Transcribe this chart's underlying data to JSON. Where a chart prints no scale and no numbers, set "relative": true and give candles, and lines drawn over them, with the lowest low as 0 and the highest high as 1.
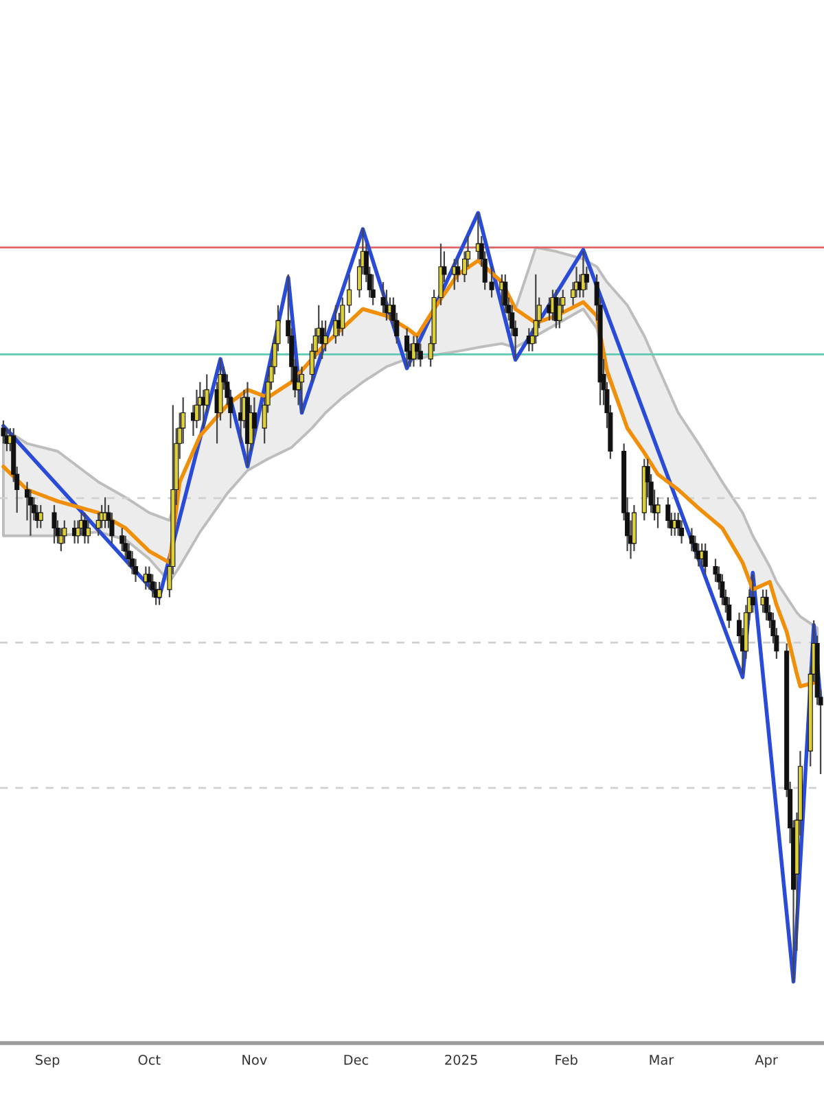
{
  "chart_data": {
    "type": "candlestick",
    "relative": true,
    "tick_labels": "x",
    "grid": false,
    "xlim": [
      "2024-08-18",
      "2025-04-18"
    ],
    "xticks": [
      {
        "value": "2024-09-01",
        "label": "Sep"
      },
      {
        "value": "2024-10-01",
        "label": "Oct"
      },
      {
        "value": "2024-11-01",
        "label": "Nov"
      },
      {
        "value": "2024-12-01",
        "label": "Dec"
      },
      {
        "value": "2025-01-01",
        "label": "2025"
      },
      {
        "value": "2025-02-01",
        "label": "Feb"
      },
      {
        "value": "2025-03-01",
        "label": "Mar"
      },
      {
        "value": "2025-04-01",
        "label": "Apr"
      }
    ],
    "x": [
      "2024-08-19",
      "2024-08-20",
      "2024-08-21",
      "2024-08-22",
      "2024-08-23",
      "2024-08-26",
      "2024-08-27",
      "2024-08-28",
      "2024-08-29",
      "2024-08-30",
      "2024-09-03",
      "2024-09-04",
      "2024-09-05",
      "2024-09-06",
      "2024-09-09",
      "2024-09-10",
      "2024-09-11",
      "2024-09-12",
      "2024-09-13",
      "2024-09-16",
      "2024-09-17",
      "2024-09-18",
      "2024-09-19",
      "2024-09-20",
      "2024-09-23",
      "2024-09-24",
      "2024-09-25",
      "2024-09-26",
      "2024-09-27",
      "2024-09-30",
      "2024-10-01",
      "2024-10-02",
      "2024-10-03",
      "2024-10-04",
      "2024-10-07",
      "2024-10-08",
      "2024-10-09",
      "2024-10-10",
      "2024-10-11",
      "2024-10-14",
      "2024-10-15",
      "2024-10-16",
      "2024-10-17",
      "2024-10-18",
      "2024-10-21",
      "2024-10-22",
      "2024-10-23",
      "2024-10-24",
      "2024-10-25",
      "2024-10-28",
      "2024-10-29",
      "2024-10-30",
      "2024-10-31",
      "2024-11-01",
      "2024-11-04",
      "2024-11-05",
      "2024-11-06",
      "2024-11-07",
      "2024-11-08",
      "2024-11-11",
      "2024-11-12",
      "2024-11-13",
      "2024-11-14",
      "2024-11-15",
      "2024-11-18",
      "2024-11-19",
      "2024-11-20",
      "2024-11-21",
      "2024-11-22",
      "2024-11-25",
      "2024-11-26",
      "2024-11-27",
      "2024-11-29",
      "2024-12-02",
      "2024-12-03",
      "2024-12-04",
      "2024-12-05",
      "2024-12-06",
      "2024-12-09",
      "2024-12-10",
      "2024-12-11",
      "2024-12-12",
      "2024-12-13",
      "2024-12-16",
      "2024-12-17",
      "2024-12-18",
      "2024-12-19",
      "2024-12-20",
      "2024-12-23",
      "2024-12-24",
      "2024-12-26",
      "2024-12-27",
      "2024-12-30",
      "2024-12-31",
      "2025-01-02",
      "2025-01-03",
      "2025-01-06",
      "2025-01-07",
      "2025-01-08",
      "2025-01-10",
      "2025-01-13",
      "2025-01-14",
      "2025-01-15",
      "2025-01-16",
      "2025-01-17",
      "2025-01-21",
      "2025-01-22",
      "2025-01-23",
      "2025-01-24",
      "2025-01-27",
      "2025-01-28",
      "2025-01-29",
      "2025-01-30",
      "2025-01-31",
      "2025-02-03",
      "2025-02-04",
      "2025-02-05",
      "2025-02-06",
      "2025-02-07",
      "2025-02-10",
      "2025-02-11",
      "2025-02-12",
      "2025-02-13",
      "2025-02-14",
      "2025-02-18",
      "2025-02-19",
      "2025-02-20",
      "2025-02-21",
      "2025-02-24",
      "2025-02-25",
      "2025-02-26",
      "2025-02-27",
      "2025-02-28",
      "2025-03-03",
      "2025-03-04",
      "2025-03-05",
      "2025-03-06",
      "2025-03-07",
      "2025-03-10",
      "2025-03-11",
      "2025-03-12",
      "2025-03-13",
      "2025-03-14",
      "2025-03-17",
      "2025-03-18",
      "2025-03-19",
      "2025-03-20",
      "2025-03-21",
      "2025-03-24",
      "2025-03-25",
      "2025-03-26",
      "2025-03-27",
      "2025-03-28",
      "2025-03-31",
      "2025-04-01",
      "2025-04-02",
      "2025-04-03",
      "2025-04-04",
      "2025-04-07",
      "2025-04-08",
      "2025-04-09",
      "2025-04-10",
      "2025-04-11",
      "2025-04-14",
      "2025-04-15",
      "2025-04-16",
      "2025-04-17"
    ],
    "ohlc": [
      [
        0.72,
        0.73,
        0.7,
        0.71
      ],
      [
        0.71,
        0.72,
        0.69,
        0.7
      ],
      [
        0.7,
        0.72,
        0.69,
        0.71
      ],
      [
        0.71,
        0.72,
        0.65,
        0.66
      ],
      [
        0.66,
        0.67,
        0.61,
        0.64
      ],
      [
        0.64,
        0.65,
        0.6,
        0.63
      ],
      [
        0.63,
        0.64,
        0.58,
        0.62
      ],
      [
        0.62,
        0.63,
        0.6,
        0.61
      ],
      [
        0.61,
        0.62,
        0.59,
        0.6
      ],
      [
        0.6,
        0.62,
        0.59,
        0.61
      ],
      [
        0.61,
        0.62,
        0.57,
        0.59
      ],
      [
        0.59,
        0.6,
        0.57,
        0.58
      ],
      [
        0.57,
        0.59,
        0.56,
        0.58
      ],
      [
        0.58,
        0.6,
        0.57,
        0.59
      ],
      [
        0.59,
        0.6,
        0.57,
        0.58
      ],
      [
        0.58,
        0.6,
        0.57,
        0.59
      ],
      [
        0.59,
        0.61,
        0.58,
        0.6
      ],
      [
        0.6,
        0.61,
        0.57,
        0.58
      ],
      [
        0.58,
        0.6,
        0.57,
        0.59
      ],
      [
        0.59,
        0.61,
        0.58,
        0.6
      ],
      [
        0.6,
        0.62,
        0.59,
        0.61
      ],
      [
        0.6,
        0.63,
        0.59,
        0.61
      ],
      [
        0.61,
        0.62,
        0.59,
        0.6
      ],
      [
        0.6,
        0.61,
        0.57,
        0.58
      ],
      [
        0.58,
        0.59,
        0.56,
        0.57
      ],
      [
        0.57,
        0.58,
        0.55,
        0.56
      ],
      [
        0.56,
        0.57,
        0.54,
        0.55
      ],
      [
        0.55,
        0.56,
        0.53,
        0.54
      ],
      [
        0.54,
        0.55,
        0.52,
        0.53
      ],
      [
        0.52,
        0.54,
        0.51,
        0.53
      ],
      [
        0.53,
        0.54,
        0.51,
        0.52
      ],
      [
        0.52,
        0.53,
        0.5,
        0.51
      ],
      [
        0.51,
        0.52,
        0.49,
        0.5
      ],
      [
        0.5,
        0.52,
        0.49,
        0.51
      ],
      [
        0.51,
        0.55,
        0.5,
        0.54
      ],
      [
        0.54,
        0.75,
        0.53,
        0.64
      ],
      [
        0.64,
        0.72,
        0.62,
        0.7
      ],
      [
        0.7,
        0.74,
        0.68,
        0.72
      ],
      [
        0.72,
        0.76,
        0.7,
        0.74
      ],
      [
        0.74,
        0.75,
        0.71,
        0.73
      ],
      [
        0.73,
        0.77,
        0.72,
        0.75
      ],
      [
        0.75,
        0.78,
        0.73,
        0.76
      ],
      [
        0.76,
        0.77,
        0.72,
        0.75
      ],
      [
        0.75,
        0.79,
        0.74,
        0.77
      ],
      [
        0.77,
        0.78,
        0.7,
        0.74
      ],
      [
        0.74,
        0.81,
        0.73,
        0.79
      ],
      [
        0.79,
        0.8,
        0.77,
        0.78
      ],
      [
        0.78,
        0.79,
        0.75,
        0.76
      ],
      [
        0.76,
        0.77,
        0.72,
        0.74
      ],
      [
        0.74,
        0.76,
        0.7,
        0.73
      ],
      [
        0.73,
        0.77,
        0.72,
        0.76
      ],
      [
        0.76,
        0.78,
        0.67,
        0.7
      ],
      [
        0.7,
        0.75,
        0.69,
        0.74
      ],
      [
        0.74,
        0.76,
        0.71,
        0.72
      ],
      [
        0.72,
        0.76,
        0.7,
        0.75
      ],
      [
        0.75,
        0.79,
        0.74,
        0.78
      ],
      [
        0.78,
        0.81,
        0.77,
        0.8
      ],
      [
        0.8,
        0.84,
        0.79,
        0.83
      ],
      [
        0.83,
        0.88,
        0.82,
        0.86
      ],
      [
        0.86,
        0.92,
        0.83,
        0.84
      ],
      [
        0.84,
        0.85,
        0.78,
        0.8
      ],
      [
        0.8,
        0.81,
        0.76,
        0.77
      ],
      [
        0.77,
        0.79,
        0.75,
        0.78
      ],
      [
        0.78,
        0.8,
        0.74,
        0.79
      ],
      [
        0.79,
        0.83,
        0.78,
        0.82
      ],
      [
        0.82,
        0.85,
        0.81,
        0.84
      ],
      [
        0.84,
        0.88,
        0.83,
        0.85
      ],
      [
        0.85,
        0.86,
        0.81,
        0.83
      ],
      [
        0.83,
        0.86,
        0.82,
        0.84
      ],
      [
        0.84,
        0.88,
        0.83,
        0.86
      ],
      [
        0.86,
        0.87,
        0.84,
        0.85
      ],
      [
        0.85,
        0.89,
        0.84,
        0.88
      ],
      [
        0.88,
        0.92,
        0.87,
        0.9
      ],
      [
        0.9,
        0.94,
        0.89,
        0.93
      ],
      [
        0.93,
        0.98,
        0.92,
        0.95
      ],
      [
        0.95,
        0.96,
        0.91,
        0.92
      ],
      [
        0.92,
        0.93,
        0.89,
        0.9
      ],
      [
        0.9,
        0.92,
        0.88,
        0.89
      ],
      [
        0.89,
        0.91,
        0.87,
        0.88
      ],
      [
        0.88,
        0.9,
        0.86,
        0.87
      ],
      [
        0.87,
        0.89,
        0.86,
        0.88
      ],
      [
        0.88,
        0.89,
        0.85,
        0.86
      ],
      [
        0.86,
        0.87,
        0.83,
        0.84
      ],
      [
        0.84,
        0.85,
        0.8,
        0.82
      ],
      [
        0.82,
        0.83,
        0.8,
        0.81
      ],
      [
        0.81,
        0.84,
        0.8,
        0.83
      ],
      [
        0.83,
        0.84,
        0.81,
        0.82
      ],
      [
        0.82,
        0.83,
        0.8,
        0.81
      ],
      [
        0.81,
        0.84,
        0.8,
        0.83
      ],
      [
        0.83,
        0.9,
        0.82,
        0.89
      ],
      [
        0.89,
        0.96,
        0.88,
        0.93
      ],
      [
        0.93,
        0.95,
        0.91,
        0.92
      ],
      [
        0.92,
        0.94,
        0.9,
        0.93
      ],
      [
        0.93,
        0.94,
        0.91,
        0.92
      ],
      [
        0.92,
        0.95,
        0.91,
        0.94
      ],
      [
        0.94,
        0.97,
        0.93,
        0.95
      ],
      [
        0.95,
        1.0,
        0.94,
        0.96
      ],
      [
        0.96,
        0.97,
        0.93,
        0.94
      ],
      [
        0.94,
        0.95,
        0.9,
        0.91
      ],
      [
        0.91,
        0.93,
        0.89,
        0.9
      ],
      [
        0.9,
        0.92,
        0.88,
        0.91
      ],
      [
        0.91,
        0.92,
        0.87,
        0.88
      ],
      [
        0.88,
        0.89,
        0.86,
        0.87
      ],
      [
        0.87,
        0.88,
        0.84,
        0.85
      ],
      [
        0.85,
        0.86,
        0.81,
        0.84
      ],
      [
        0.84,
        0.85,
        0.82,
        0.83
      ],
      [
        0.83,
        0.85,
        0.82,
        0.84
      ],
      [
        0.84,
        0.92,
        0.83,
        0.86
      ],
      [
        0.86,
        0.89,
        0.85,
        0.88
      ],
      [
        0.88,
        0.89,
        0.86,
        0.87
      ],
      [
        0.87,
        0.9,
        0.86,
        0.89
      ],
      [
        0.89,
        0.9,
        0.85,
        0.86
      ],
      [
        0.86,
        0.89,
        0.85,
        0.88
      ],
      [
        0.88,
        0.9,
        0.87,
        0.89
      ],
      [
        0.89,
        0.91,
        0.88,
        0.9
      ],
      [
        0.9,
        0.93,
        0.89,
        0.91
      ],
      [
        0.91,
        0.92,
        0.89,
        0.9
      ],
      [
        0.9,
        0.95,
        0.89,
        0.92
      ],
      [
        0.92,
        0.93,
        0.9,
        0.91
      ],
      [
        0.91,
        0.92,
        0.86,
        0.88
      ],
      [
        0.88,
        0.89,
        0.75,
        0.78
      ],
      [
        0.79,
        0.81,
        0.75,
        0.77
      ],
      [
        0.77,
        0.78,
        0.72,
        0.74
      ],
      [
        0.74,
        0.75,
        0.68,
        0.69
      ],
      [
        0.69,
        0.7,
        0.6,
        0.61
      ],
      [
        0.61,
        0.63,
        0.56,
        0.58
      ],
      [
        0.58,
        0.6,
        0.55,
        0.57
      ],
      [
        0.57,
        0.62,
        0.56,
        0.61
      ],
      [
        0.61,
        0.68,
        0.6,
        0.67
      ],
      [
        0.67,
        0.68,
        0.63,
        0.65
      ],
      [
        0.65,
        0.66,
        0.61,
        0.62
      ],
      [
        0.62,
        0.64,
        0.6,
        0.61
      ],
      [
        0.61,
        0.63,
        0.59,
        0.62
      ],
      [
        0.62,
        0.63,
        0.59,
        0.6
      ],
      [
        0.6,
        0.61,
        0.58,
        0.59
      ],
      [
        0.59,
        0.61,
        0.58,
        0.6
      ],
      [
        0.6,
        0.61,
        0.58,
        0.59
      ],
      [
        0.59,
        0.6,
        0.57,
        0.58
      ],
      [
        0.58,
        0.59,
        0.56,
        0.57
      ],
      [
        0.57,
        0.58,
        0.55,
        0.56
      ],
      [
        0.56,
        0.57,
        0.54,
        0.55
      ],
      [
        0.55,
        0.57,
        0.54,
        0.56
      ],
      [
        0.56,
        0.57,
        0.53,
        0.54
      ],
      [
        0.54,
        0.55,
        0.52,
        0.53
      ],
      [
        0.53,
        0.54,
        0.51,
        0.52
      ],
      [
        0.52,
        0.53,
        0.49,
        0.5
      ],
      [
        0.5,
        0.51,
        0.48,
        0.49
      ],
      [
        0.49,
        0.5,
        0.46,
        0.47
      ],
      [
        0.47,
        0.48,
        0.44,
        0.45
      ],
      [
        0.45,
        0.46,
        0.4,
        0.43
      ],
      [
        0.43,
        0.49,
        0.42,
        0.48
      ],
      [
        0.48,
        0.51,
        0.47,
        0.5
      ],
      [
        0.5,
        0.53,
        0.48,
        0.49
      ],
      [
        0.49,
        0.51,
        0.48,
        0.5
      ],
      [
        0.5,
        0.51,
        0.47,
        0.48
      ],
      [
        0.48,
        0.49,
        0.46,
        0.47
      ],
      [
        0.47,
        0.48,
        0.44,
        0.45
      ],
      [
        0.45,
        0.46,
        0.42,
        0.43
      ],
      [
        0.43,
        0.44,
        0.24,
        0.25
      ],
      [
        0.25,
        0.26,
        0.18,
        0.2
      ],
      [
        0.2,
        0.21,
        0.0,
        0.12
      ],
      [
        0.14,
        0.22,
        0.04,
        0.21
      ],
      [
        0.21,
        0.3,
        0.19,
        0.28
      ],
      [
        0.3,
        0.41,
        0.28,
        0.4
      ],
      [
        0.4,
        0.47,
        0.39,
        0.44
      ],
      [
        0.44,
        0.45,
        0.36,
        0.37
      ],
      [
        0.37,
        0.38,
        0.27,
        0.36
      ]
    ],
    "colors": [
      "#111111",
      "#111111",
      "#dccf3a",
      "#111111",
      "#111111",
      "#111111",
      "#111111",
      "#111111",
      "#111111",
      "#dccf3a",
      "#111111",
      "#111111",
      "#dccf3a",
      "#dccf3a",
      "#111111",
      "#dccf3a",
      "#dccf3a",
      "#111111",
      "#dccf3a",
      "#dccf3a",
      "#dccf3a",
      "#dccf3a",
      "#111111",
      "#111111",
      "#111111",
      "#111111",
      "#111111",
      "#111111",
      "#111111",
      "#dccf3a",
      "#111111",
      "#111111",
      "#111111",
      "#dccf3a",
      "#dccf3a",
      "#dccf3a",
      "#dccf3a",
      "#dccf3a",
      "#dccf3a",
      "#111111",
      "#dccf3a",
      "#dccf3a",
      "#111111",
      "#dccf3a",
      "#111111",
      "#dccf3a",
      "#111111",
      "#111111",
      "#111111",
      "#111111",
      "#dccf3a",
      "#111111",
      "#dccf3a",
      "#111111",
      "#dccf3a",
      "#dccf3a",
      "#dccf3a",
      "#dccf3a",
      "#dccf3a",
      "#111111",
      "#111111",
      "#111111",
      "#dccf3a",
      "#dccf3a",
      "#dccf3a",
      "#dccf3a",
      "#dccf3a",
      "#111111",
      "#dccf3a",
      "#dccf3a",
      "#111111",
      "#dccf3a",
      "#dccf3a",
      "#dccf3a",
      "#dccf3a",
      "#111111",
      "#111111",
      "#111111",
      "#111111",
      "#111111",
      "#dccf3a",
      "#111111",
      "#111111",
      "#111111",
      "#111111",
      "#dccf3a",
      "#111111",
      "#111111",
      "#dccf3a",
      "#dccf3a",
      "#dccf3a",
      "#111111",
      "#dccf3a",
      "#111111",
      "#dccf3a",
      "#dccf3a",
      "#dccf3a",
      "#111111",
      "#111111",
      "#111111",
      "#dccf3a",
      "#111111",
      "#111111",
      "#111111",
      "#111111",
      "#111111",
      "#dccf3a",
      "#dccf3a",
      "#dccf3a",
      "#111111",
      "#dccf3a",
      "#111111",
      "#dccf3a",
      "#dccf3a",
      "#dccf3a",
      "#dccf3a",
      "#111111",
      "#dccf3a",
      "#111111",
      "#111111",
      "#111111",
      "#111111",
      "#111111",
      "#111111",
      "#111111",
      "#111111",
      "#111111",
      "#dccf3a",
      "#dccf3a",
      "#111111",
      "#111111",
      "#111111",
      "#dccf3a",
      "#111111",
      "#111111",
      "#dccf3a",
      "#111111",
      "#111111",
      "#111111",
      "#111111",
      "#111111",
      "#dccf3a",
      "#111111",
      "#111111",
      "#111111",
      "#111111",
      "#111111",
      "#111111",
      "#111111",
      "#111111",
      "#dccf3a",
      "#dccf3a",
      "#111111",
      "#dccf3a",
      "#111111",
      "#111111",
      "#111111",
      "#111111",
      "#111111",
      "#111111",
      "#111111",
      "#dccf3a",
      "#dccf3a",
      "#dccf3a",
      "#dccf3a",
      "#111111",
      "#111111"
    ],
    "series": [
      {
        "type": "line",
        "color": "#f0900a",
        "x": [
          "2024-08-19",
          "2024-08-26",
          "2024-09-04",
          "2024-09-16",
          "2024-09-24",
          "2024-10-01",
          "2024-10-07",
          "2024-10-10",
          "2024-10-16",
          "2024-10-24",
          "2024-10-30",
          "2024-11-05",
          "2024-11-12",
          "2024-11-18",
          "2024-11-22",
          "2024-11-27",
          "2024-12-03",
          "2024-12-10",
          "2024-12-16",
          "2024-12-19",
          "2024-12-24",
          "2024-12-31",
          "2025-01-06",
          "2025-01-13",
          "2025-01-17",
          "2025-01-23",
          "2025-01-29",
          "2025-02-06",
          "2025-02-10",
          "2025-02-13",
          "2025-02-19",
          "2025-02-24",
          "2025-02-28",
          "2025-03-06",
          "2025-03-12",
          "2025-03-19",
          "2025-03-25",
          "2025-03-28",
          "2025-04-02",
          "2025-04-04",
          "2025-04-07",
          "2025-04-10",
          "2025-04-11",
          "2025-04-16"
        ],
        "values": [
          0.67,
          0.64,
          0.625,
          0.61,
          0.59,
          0.56,
          0.545,
          0.65,
          0.71,
          0.75,
          0.77,
          0.76,
          0.78,
          0.81,
          0.83,
          0.85,
          0.875,
          0.866,
          0.85,
          0.84,
          0.875,
          0.92,
          0.938,
          0.91,
          0.875,
          0.857,
          0.866,
          0.884,
          0.866,
          0.795,
          0.72,
          0.688,
          0.66,
          0.64,
          0.616,
          0.59,
          0.545,
          0.51,
          0.52,
          0.49,
          0.455,
          0.4,
          0.384,
          0.39
        ],
        "lower": [
          0.58,
          0.58,
          0.58,
          0.585,
          0.575,
          0.55,
          0.52,
          0.54,
          0.585,
          0.635,
          0.665,
          0.68,
          0.695,
          0.72,
          0.74,
          0.76,
          0.78,
          0.8,
          0.81,
          0.81,
          0.815,
          0.82,
          0.825,
          0.83,
          0.825,
          0.84,
          0.855,
          0.875,
          0.85,
          0.79,
          0.72,
          0.688,
          0.66,
          0.64,
          0.616,
          0.59,
          0.545,
          0.51,
          0.52,
          0.49,
          0.455,
          0.4,
          0.384,
          0.39
        ],
        "upper": [
          0.72,
          0.7,
          0.69,
          0.65,
          0.63,
          0.61,
          0.6,
          0.65,
          0.71,
          0.75,
          0.77,
          0.76,
          0.78,
          0.81,
          0.83,
          0.85,
          0.875,
          0.866,
          0.85,
          0.84,
          0.875,
          0.92,
          0.938,
          0.91,
          0.875,
          0.955,
          0.95,
          0.94,
          0.93,
          0.91,
          0.88,
          0.84,
          0.8,
          0.74,
          0.7,
          0.65,
          0.61,
          0.58,
          0.54,
          0.52,
          0.5,
          0.48,
          0.475,
          0.46
        ]
      },
      {
        "type": "line",
        "color": "#2a4bd7",
        "x": [
          "2024-08-19",
          "2024-10-04",
          "2024-10-22",
          "2024-10-30",
          "2024-11-11",
          "2024-11-15",
          "2024-12-03",
          "2024-12-16",
          "2025-01-06",
          "2025-01-17",
          "2025-02-06",
          "2025-03-25",
          "2025-03-28",
          "2025-04-09",
          "2025-04-15",
          "2025-04-17"
        ],
        "values": [
          0.723,
          0.5,
          0.81,
          0.67,
          0.916,
          0.74,
          0.979,
          0.798,
          1.0,
          0.809,
          0.952,
          0.396,
          0.532,
          0.0,
          0.464,
          0.366
        ]
      }
    ],
    "ref_lines": [
      {
        "axis": "y",
        "value": 0.955,
        "color": "#e06666",
        "line_style": "solid"
      },
      {
        "axis": "y",
        "value": 0.816,
        "color": "#5cc9b0",
        "line_style": "solid"
      },
      {
        "axis": "y",
        "value": 0.629,
        "color": "#d0d0d0",
        "line_style": "dashed"
      },
      {
        "axis": "y",
        "value": 0.441,
        "color": "#d0d0d0",
        "line_style": "dashed"
      },
      {
        "axis": "y",
        "value": 0.252,
        "color": "#d0d0d0",
        "line_style": "dashed"
      }
    ]
  }
}
